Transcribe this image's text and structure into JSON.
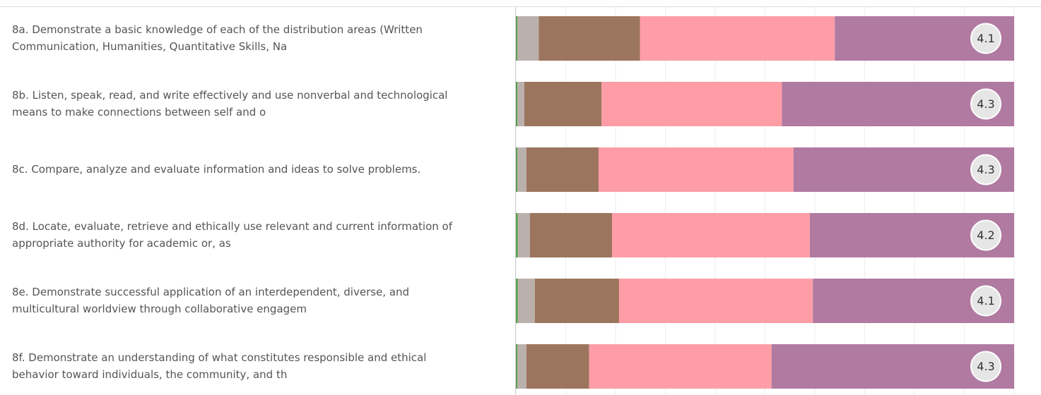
{
  "chart_data": {
    "type": "stacked_bar_horizontal",
    "categories": [
      [
        "8a. Demonstrate a basic knowledge of each of the distribution areas (Written",
        "Communication, Humanities, Quantitative Skills, Na"
      ],
      [
        "8b. Listen, speak, read, and write effectively and use nonverbal and technological",
        "means to make connections between self and o"
      ],
      [
        "8c. Compare, analyze and evaluate information and ideas to solve problems."
      ],
      [
        "8d. Locate, evaluate, retrieve and ethically use relevant and current information of",
        "appropriate authority for academic or, as"
      ],
      [
        "8e. Demonstrate successful application of an interdependent, diverse, and",
        "multicultural worldview through collaborative engagem"
      ],
      [
        "8f. Demonstrate an understanding of what constitutes responsible and ethical",
        "behavior toward individuals, the community, and th"
      ]
    ],
    "series": [
      {
        "color": "#59a14f",
        "values": [
          0.3,
          0.3,
          0.3,
          0.4,
          0.4,
          0.3
        ]
      },
      {
        "color": "#bab0ac",
        "values": [
          4.3,
          1.4,
          1.8,
          2.4,
          3.4,
          1.8
        ]
      },
      {
        "color": "#9c755f",
        "values": [
          20.3,
          15.5,
          14.5,
          16.5,
          16.9,
          12.6
        ]
      },
      {
        "color": "#ff9da7",
        "values": [
          39.1,
          36.2,
          39.1,
          39.7,
          38.9,
          36.6
        ]
      },
      {
        "color": "#b07aa1",
        "values": [
          36.0,
          46.6,
          44.3,
          41.0,
          40.4,
          48.7
        ]
      }
    ],
    "averages": [
      4.1,
      4.3,
      4.3,
      4.2,
      4.1,
      4.3
    ],
    "xlim": [
      0,
      100
    ],
    "xticks": [
      0,
      10,
      20,
      30,
      40,
      50,
      60,
      70,
      80,
      90,
      100
    ],
    "grid": true
  }
}
